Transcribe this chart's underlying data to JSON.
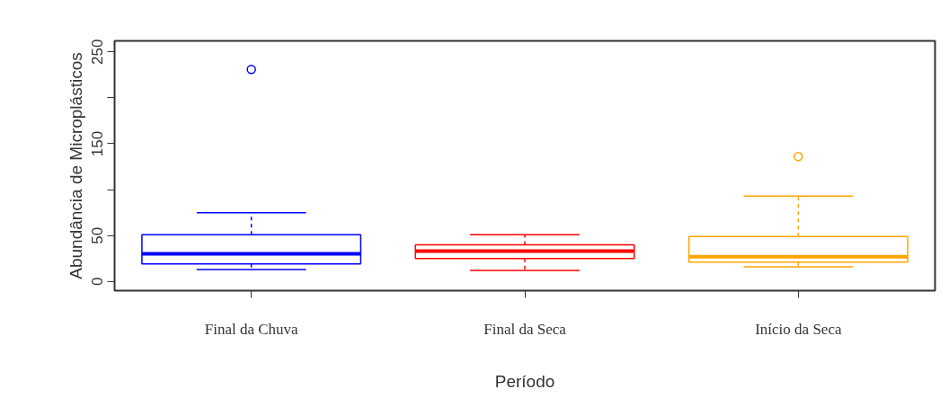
{
  "chart_data": {
    "type": "box",
    "xlabel": "Período",
    "ylabel": "Abundância de Microplásticos",
    "categories": [
      "Final da Chuva",
      "Final da Seca",
      "Início da Seca"
    ],
    "colors": [
      "#0000ff",
      "#ff0000",
      "#ffa500"
    ],
    "boxes": [
      {
        "low": 13,
        "q1": 19,
        "median": 30,
        "q3": 51,
        "high": 75,
        "outliers": [
          231
        ]
      },
      {
        "low": 12,
        "q1": 25,
        "median": 33,
        "q3": 40,
        "high": 51
      },
      {
        "low": 16,
        "q1": 21,
        "median": 27,
        "q3": 49,
        "high": 93,
        "outliers": [
          136
        ]
      }
    ],
    "ylim": [
      -10,
      262
    ],
    "yticks": [
      0,
      50,
      {
        "value": 100,
        "label": null
      },
      150,
      {
        "value": 200,
        "label": null
      },
      250
    ]
  }
}
